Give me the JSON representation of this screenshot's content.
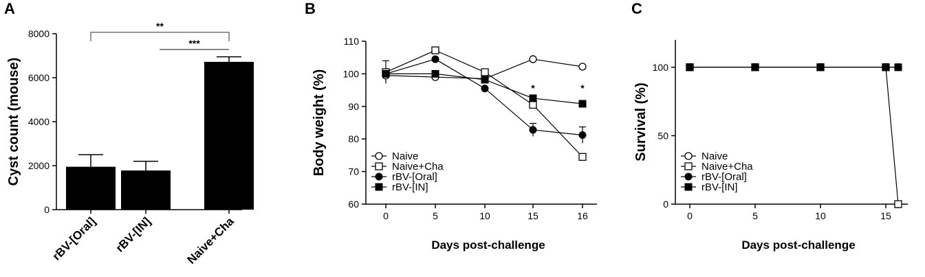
{
  "panels": {
    "a": {
      "label": "A"
    },
    "b": {
      "label": "B"
    },
    "c": {
      "label": "C"
    }
  },
  "chart_data": [
    {
      "type": "bar",
      "categories": [
        "rBV-[Oral]",
        "rBV-[IN]",
        "Naive+Cha"
      ],
      "values": [
        1950,
        1780,
        6720
      ],
      "errors": [
        550,
        420,
        230
      ],
      "ylabel": "Cyst count (mouse)",
      "ylim": [
        0,
        8000
      ],
      "yticks": [
        0,
        2000,
        4000,
        6000,
        8000
      ],
      "bar_color": "#000000",
      "significance": [
        {
          "from": "rBV-[Oral]",
          "to": "Naive+Cha",
          "label": "**"
        },
        {
          "from": "rBV-[IN]",
          "to": "Naive+Cha",
          "label": "***"
        }
      ]
    },
    {
      "type": "line",
      "x": [
        0,
        5,
        10,
        15,
        16
      ],
      "xticks": [
        "0",
        "5",
        "10",
        "15",
        "16"
      ],
      "xlabel": "Days post-challenge",
      "ylabel": "Body weight (%)",
      "ylim": [
        60,
        110
      ],
      "yticks": [
        60,
        70,
        80,
        90,
        100,
        110
      ],
      "series": [
        {
          "name": "Naive",
          "marker": "open-circle",
          "values": [
            99.5,
            99,
            98.5,
            104.5,
            102.2
          ],
          "errors": [
            0,
            0,
            0,
            0,
            0
          ]
        },
        {
          "name": "Naive+Cha",
          "marker": "open-square",
          "values": [
            100.5,
            107.2,
            100.5,
            90.5,
            74.5
          ],
          "errors": [
            3.5,
            0.8,
            1,
            0,
            0
          ]
        },
        {
          "name": "rBV-[Oral]",
          "marker": "filled-circle",
          "values": [
            100,
            104.5,
            95.5,
            82.8,
            81.2
          ],
          "errors": [
            0,
            0,
            0,
            2,
            2.5
          ]
        },
        {
          "name": "rBV-[IN]",
          "marker": "filled-square",
          "values": [
            100,
            100,
            98.2,
            92.5,
            90.8
          ],
          "errors": [
            0,
            0,
            0,
            0,
            0
          ]
        }
      ],
      "annotations": [
        {
          "x": 15,
          "text": "*"
        },
        {
          "x": 16,
          "text": "*"
        }
      ],
      "legend": "bottom-left"
    },
    {
      "type": "line",
      "x": [
        0,
        5,
        10,
        15,
        16
      ],
      "xticks": [
        "0",
        "5",
        "10",
        "15"
      ],
      "xlabel": "Days post-challenge",
      "ylabel": "Survival (%)",
      "ylim": [
        0,
        120
      ],
      "yticks": [
        0,
        50,
        100
      ],
      "series": [
        {
          "name": "Naive",
          "marker": "open-circle",
          "values": [
            100,
            100,
            100,
            100,
            100
          ]
        },
        {
          "name": "Naive+Cha",
          "marker": "open-square",
          "values": [
            100,
            100,
            100,
            100,
            0
          ]
        },
        {
          "name": "rBV-[Oral]",
          "marker": "filled-circle",
          "values": [
            100,
            100,
            100,
            100,
            100
          ]
        },
        {
          "name": "rBV-[IN]",
          "marker": "filled-square",
          "values": [
            100,
            100,
            100,
            100,
            100
          ]
        }
      ],
      "legend": "bottom-left"
    }
  ]
}
